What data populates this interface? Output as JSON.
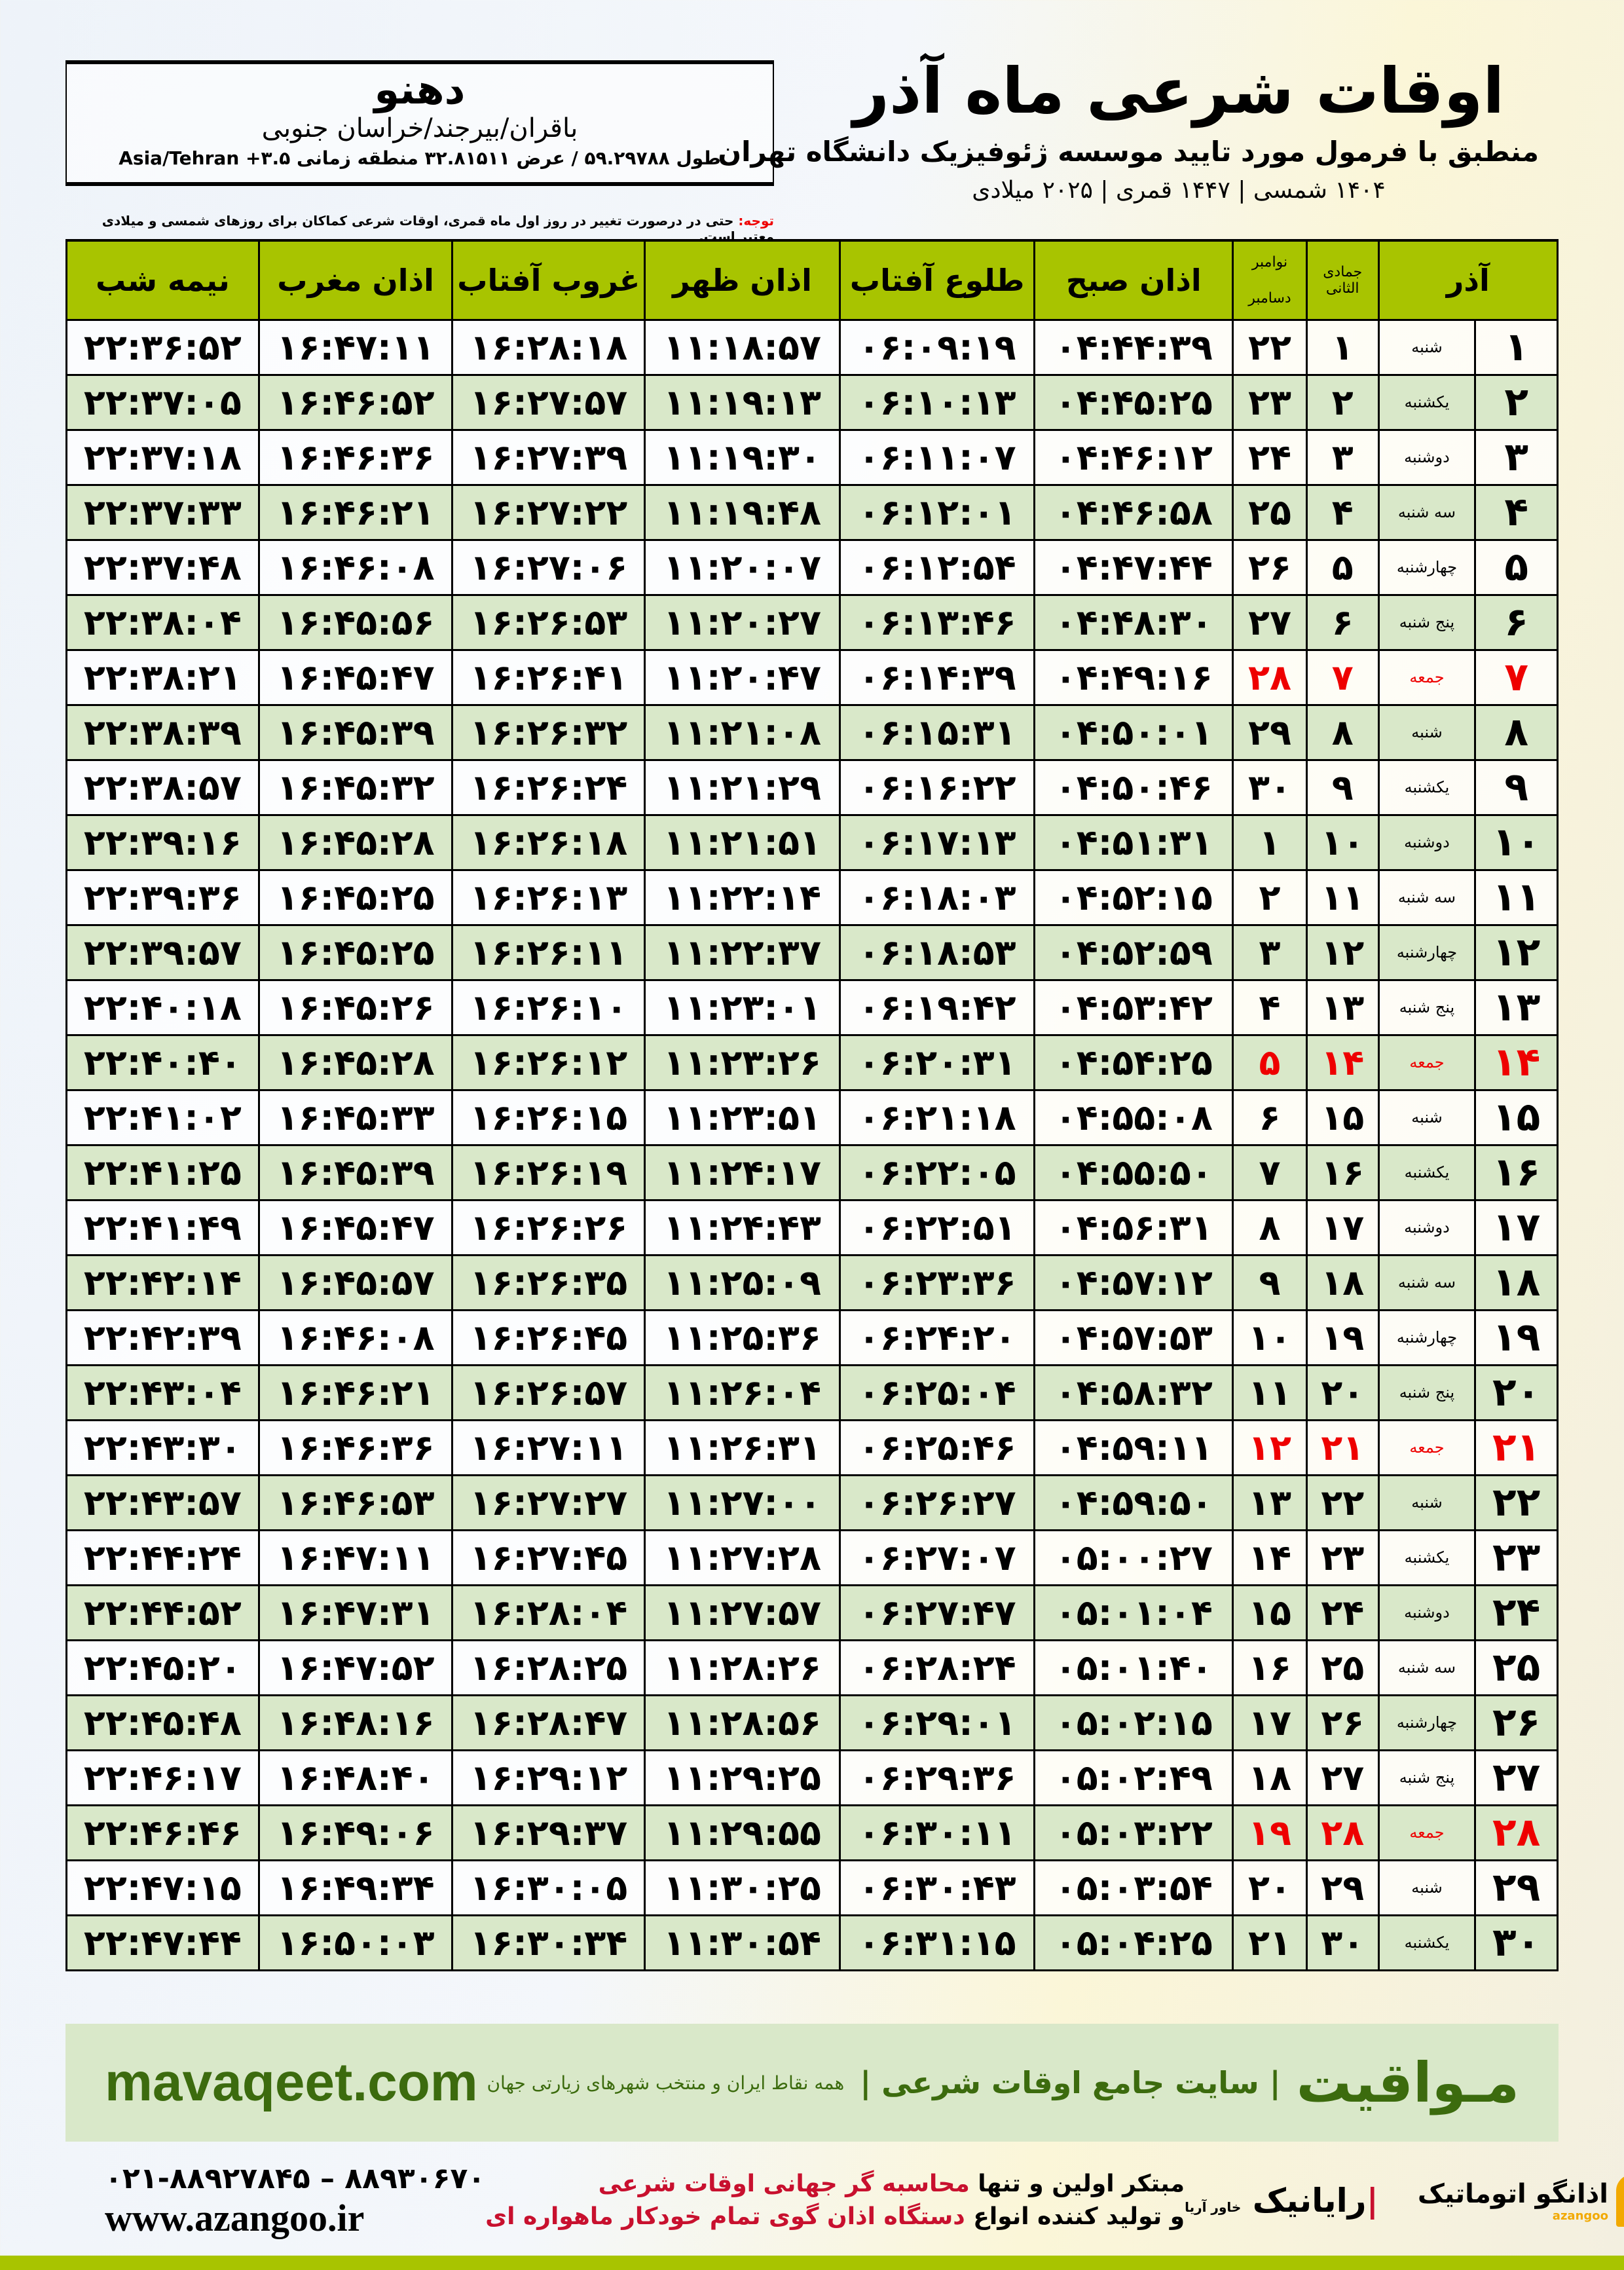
{
  "header": {
    "title": "اوقات شرعی ماه آذر",
    "subtitle": "منطبق با فرمول مورد تایید موسسه ژئوفیزیک دانشگاه تهران",
    "dates": "۱۴۰۴ شمسی | ۱۴۴۷ قمری | ۲۰۲۵ میلادی"
  },
  "location": {
    "city": "دهنو",
    "region": "باقران/بیرجند/خراسان جنوبی",
    "coords": "طول ۵۹.۲۹۷۸۸ / عرض ۳۲.۸۱۵۱۱ منطقه زمانی ۳.۵+ Asia/Tehran"
  },
  "note": {
    "label": "توجه:",
    "text": " حتی در درصورت تغییر در روز اول ماه قمری، اوقات شرعی کماکان برای روزهای شمسی و میلادی معتبر است."
  },
  "columns": {
    "month": "آذر",
    "hijri": "جمادی الثانی",
    "greg_top": "نوامبر",
    "greg_bottom": "دسامبر",
    "fajr": "اذان صبح",
    "sunrise": "طلوع آفتاب",
    "dhuhr": "اذان ظهر",
    "sunset": "غروب آفتاب",
    "maghrib": "اذان مغرب",
    "midnight": "نیمه شب"
  },
  "colors": {
    "header": "#a8c400",
    "row_alt": "#d9e8c9",
    "holiday": "#ee0000"
  },
  "rows": [
    [
      "۱",
      "شنبه",
      "۱",
      "۲۲",
      "۰۴:۴۴:۳۹",
      "۰۶:۰۹:۱۹",
      "۱۱:۱۸:۵۷",
      "۱۶:۲۸:۱۸",
      "۱۶:۴۷:۱۱",
      "۲۲:۳۶:۵۲"
    ],
    [
      "۲",
      "یکشنبه",
      "۲",
      "۲۳",
      "۰۴:۴۵:۲۵",
      "۰۶:۱۰:۱۳",
      "۱۱:۱۹:۱۳",
      "۱۶:۲۷:۵۷",
      "۱۶:۴۶:۵۲",
      "۲۲:۳۷:۰۵"
    ],
    [
      "۳",
      "دوشنبه",
      "۳",
      "۲۴",
      "۰۴:۴۶:۱۲",
      "۰۶:۱۱:۰۷",
      "۱۱:۱۹:۳۰",
      "۱۶:۲۷:۳۹",
      "۱۶:۴۶:۳۶",
      "۲۲:۳۷:۱۸"
    ],
    [
      "۴",
      "سه شنبه",
      "۴",
      "۲۵",
      "۰۴:۴۶:۵۸",
      "۰۶:۱۲:۰۱",
      "۱۱:۱۹:۴۸",
      "۱۶:۲۷:۲۲",
      "۱۶:۴۶:۲۱",
      "۲۲:۳۷:۳۳"
    ],
    [
      "۵",
      "چهارشنبه",
      "۵",
      "۲۶",
      "۰۴:۴۷:۴۴",
      "۰۶:۱۲:۵۴",
      "۱۱:۲۰:۰۷",
      "۱۶:۲۷:۰۶",
      "۱۶:۴۶:۰۸",
      "۲۲:۳۷:۴۸"
    ],
    [
      "۶",
      "پنج شنبه",
      "۶",
      "۲۷",
      "۰۴:۴۸:۳۰",
      "۰۶:۱۳:۴۶",
      "۱۱:۲۰:۲۷",
      "۱۶:۲۶:۵۳",
      "۱۶:۴۵:۵۶",
      "۲۲:۳۸:۰۴"
    ],
    [
      "۷",
      "جمعه",
      "۷",
      "۲۸",
      "۰۴:۴۹:۱۶",
      "۰۶:۱۴:۳۹",
      "۱۱:۲۰:۴۷",
      "۱۶:۲۶:۴۱",
      "۱۶:۴۵:۴۷",
      "۲۲:۳۸:۲۱"
    ],
    [
      "۸",
      "شنبه",
      "۸",
      "۲۹",
      "۰۴:۵۰:۰۱",
      "۰۶:۱۵:۳۱",
      "۱۱:۲۱:۰۸",
      "۱۶:۲۶:۳۲",
      "۱۶:۴۵:۳۹",
      "۲۲:۳۸:۳۹"
    ],
    [
      "۹",
      "یکشنبه",
      "۹",
      "۳۰",
      "۰۴:۵۰:۴۶",
      "۰۶:۱۶:۲۲",
      "۱۱:۲۱:۲۹",
      "۱۶:۲۶:۲۴",
      "۱۶:۴۵:۳۲",
      "۲۲:۳۸:۵۷"
    ],
    [
      "۱۰",
      "دوشنبه",
      "۱۰",
      "۱",
      "۰۴:۵۱:۳۱",
      "۰۶:۱۷:۱۳",
      "۱۱:۲۱:۵۱",
      "۱۶:۲۶:۱۸",
      "۱۶:۴۵:۲۸",
      "۲۲:۳۹:۱۶"
    ],
    [
      "۱۱",
      "سه شنبه",
      "۱۱",
      "۲",
      "۰۴:۵۲:۱۵",
      "۰۶:۱۸:۰۳",
      "۱۱:۲۲:۱۴",
      "۱۶:۲۶:۱۳",
      "۱۶:۴۵:۲۵",
      "۲۲:۳۹:۳۶"
    ],
    [
      "۱۲",
      "چهارشنبه",
      "۱۲",
      "۳",
      "۰۴:۵۲:۵۹",
      "۰۶:۱۸:۵۳",
      "۱۱:۲۲:۳۷",
      "۱۶:۲۶:۱۱",
      "۱۶:۴۵:۲۵",
      "۲۲:۳۹:۵۷"
    ],
    [
      "۱۳",
      "پنج شنبه",
      "۱۳",
      "۴",
      "۰۴:۵۳:۴۲",
      "۰۶:۱۹:۴۲",
      "۱۱:۲۳:۰۱",
      "۱۶:۲۶:۱۰",
      "۱۶:۴۵:۲۶",
      "۲۲:۴۰:۱۸"
    ],
    [
      "۱۴",
      "جمعه",
      "۱۴",
      "۵",
      "۰۴:۵۴:۲۵",
      "۰۶:۲۰:۳۱",
      "۱۱:۲۳:۲۶",
      "۱۶:۲۶:۱۲",
      "۱۶:۴۵:۲۸",
      "۲۲:۴۰:۴۰"
    ],
    [
      "۱۵",
      "شنبه",
      "۱۵",
      "۶",
      "۰۴:۵۵:۰۸",
      "۰۶:۲۱:۱۸",
      "۱۱:۲۳:۵۱",
      "۱۶:۲۶:۱۵",
      "۱۶:۴۵:۳۳",
      "۲۲:۴۱:۰۲"
    ],
    [
      "۱۶",
      "یکشنبه",
      "۱۶",
      "۷",
      "۰۴:۵۵:۵۰",
      "۰۶:۲۲:۰۵",
      "۱۱:۲۴:۱۷",
      "۱۶:۲۶:۱۹",
      "۱۶:۴۵:۳۹",
      "۲۲:۴۱:۲۵"
    ],
    [
      "۱۷",
      "دوشنبه",
      "۱۷",
      "۸",
      "۰۴:۵۶:۳۱",
      "۰۶:۲۲:۵۱",
      "۱۱:۲۴:۴۳",
      "۱۶:۲۶:۲۶",
      "۱۶:۴۵:۴۷",
      "۲۲:۴۱:۴۹"
    ],
    [
      "۱۸",
      "سه شنبه",
      "۱۸",
      "۹",
      "۰۴:۵۷:۱۲",
      "۰۶:۲۳:۳۶",
      "۱۱:۲۵:۰۹",
      "۱۶:۲۶:۳۵",
      "۱۶:۴۵:۵۷",
      "۲۲:۴۲:۱۴"
    ],
    [
      "۱۹",
      "چهارشنبه",
      "۱۹",
      "۱۰",
      "۰۴:۵۷:۵۳",
      "۰۶:۲۴:۲۰",
      "۱۱:۲۵:۳۶",
      "۱۶:۲۶:۴۵",
      "۱۶:۴۶:۰۸",
      "۲۲:۴۲:۳۹"
    ],
    [
      "۲۰",
      "پنج شنبه",
      "۲۰",
      "۱۱",
      "۰۴:۵۸:۳۲",
      "۰۶:۲۵:۰۴",
      "۱۱:۲۶:۰۴",
      "۱۶:۲۶:۵۷",
      "۱۶:۴۶:۲۱",
      "۲۲:۴۳:۰۴"
    ],
    [
      "۲۱",
      "جمعه",
      "۲۱",
      "۱۲",
      "۰۴:۵۹:۱۱",
      "۰۶:۲۵:۴۶",
      "۱۱:۲۶:۳۱",
      "۱۶:۲۷:۱۱",
      "۱۶:۴۶:۳۶",
      "۲۲:۴۳:۳۰"
    ],
    [
      "۲۲",
      "شنبه",
      "۲۲",
      "۱۳",
      "۰۴:۵۹:۵۰",
      "۰۶:۲۶:۲۷",
      "۱۱:۲۷:۰۰",
      "۱۶:۲۷:۲۷",
      "۱۶:۴۶:۵۳",
      "۲۲:۴۳:۵۷"
    ],
    [
      "۲۳",
      "یکشنبه",
      "۲۳",
      "۱۴",
      "۰۵:۰۰:۲۷",
      "۰۶:۲۷:۰۷",
      "۱۱:۲۷:۲۸",
      "۱۶:۲۷:۴۵",
      "۱۶:۴۷:۱۱",
      "۲۲:۴۴:۲۴"
    ],
    [
      "۲۴",
      "دوشنبه",
      "۲۴",
      "۱۵",
      "۰۵:۰۱:۰۴",
      "۰۶:۲۷:۴۷",
      "۱۱:۲۷:۵۷",
      "۱۶:۲۸:۰۴",
      "۱۶:۴۷:۳۱",
      "۲۲:۴۴:۵۲"
    ],
    [
      "۲۵",
      "سه شنبه",
      "۲۵",
      "۱۶",
      "۰۵:۰۱:۴۰",
      "۰۶:۲۸:۲۴",
      "۱۱:۲۸:۲۶",
      "۱۶:۲۸:۲۵",
      "۱۶:۴۷:۵۲",
      "۲۲:۴۵:۲۰"
    ],
    [
      "۲۶",
      "چهارشنبه",
      "۲۶",
      "۱۷",
      "۰۵:۰۲:۱۵",
      "۰۶:۲۹:۰۱",
      "۱۱:۲۸:۵۶",
      "۱۶:۲۸:۴۷",
      "۱۶:۴۸:۱۶",
      "۲۲:۴۵:۴۸"
    ],
    [
      "۲۷",
      "پنج شنبه",
      "۲۷",
      "۱۸",
      "۰۵:۰۲:۴۹",
      "۰۶:۲۹:۳۶",
      "۱۱:۲۹:۲۵",
      "۱۶:۲۹:۱۲",
      "۱۶:۴۸:۴۰",
      "۲۲:۴۶:۱۷"
    ],
    [
      "۲۸",
      "جمعه",
      "۲۸",
      "۱۹",
      "۰۵:۰۳:۲۲",
      "۰۶:۳۰:۱۱",
      "۱۱:۲۹:۵۵",
      "۱۶:۲۹:۳۷",
      "۱۶:۴۹:۰۶",
      "۲۲:۴۶:۴۶"
    ],
    [
      "۲۹",
      "شنبه",
      "۲۹",
      "۲۰",
      "۰۵:۰۳:۵۴",
      "۰۶:۳۰:۴۳",
      "۱۱:۳۰:۲۵",
      "۱۶:۳۰:۰۵",
      "۱۶:۴۹:۳۴",
      "۲۲:۴۷:۱۵"
    ],
    [
      "۳۰",
      "یکشنبه",
      "۳۰",
      "۲۱",
      "۰۵:۰۴:۲۵",
      "۰۶:۳۱:۱۵",
      "۱۱:۳۰:۵۴",
      "۱۶:۳۰:۳۴",
      "۱۶:۵۰:۰۳",
      "۲۲:۴۷:۴۴"
    ]
  ],
  "footer": {
    "brand": "مـواقیت",
    "tagline": "| سایت جامع اوقات شرعی |",
    "tagline2": "همه نقاط ایران و منتخب شهرهای زیارتی جهان",
    "url": "mavaqeet.com",
    "phone": "۰۲۱-۸۸۹۲۷۸۴۵ – ۸۸۹۳۰۶۷۰",
    "web": "www.azangoo.ir",
    "promo1a": "مبتکر اولین و تنها ",
    "promo1b": "محاسبه گر جهانی اوقات شرعی",
    "promo2a": "و تولید کننده انواع ",
    "promo2b": "دستگاه اذان گوی تمام خودکار ماهواره ای",
    "logo1": "رایانیک",
    "logo1b": "خاور آریا",
    "logo2": "اذانگو اتوماتیک",
    "logo2b": "azangoo"
  }
}
